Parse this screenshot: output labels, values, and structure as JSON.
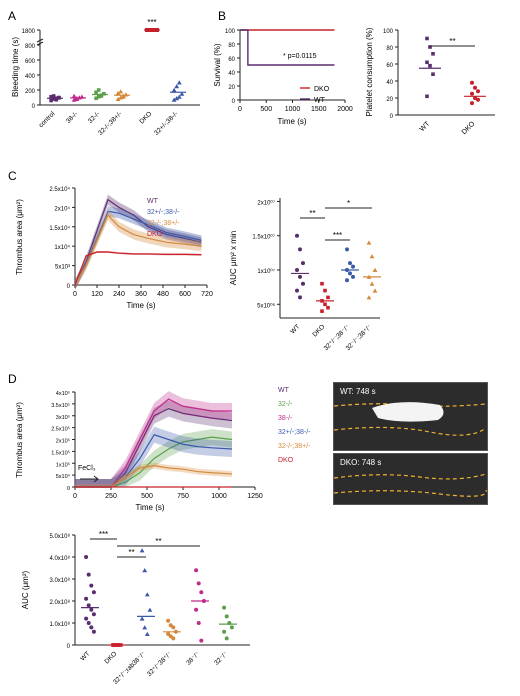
{
  "panels": {
    "A": "A",
    "B": "B",
    "C": "C",
    "D": "D"
  },
  "chart_data": [
    {
      "id": "A",
      "type": "scatter",
      "ylabel": "Bleeding time (s)",
      "yticks": [
        "0",
        "200",
        "400",
        "600",
        "800",
        "1800"
      ],
      "categories": [
        "control",
        "38-/-",
        "32-/-",
        "32-/-;38+/-",
        "DKO",
        "32+/-;38-/-"
      ],
      "colors": [
        "#5a2d6e",
        "#c02b8c",
        "#5aa04a",
        "#d48a3c",
        "#c8202b",
        "#3a5aa8"
      ],
      "values": [
        [
          60,
          80,
          90,
          100,
          110,
          120,
          70,
          95
        ],
        [
          70,
          90,
          100,
          110,
          120,
          80
        ],
        [
          90,
          110,
          130,
          150,
          170,
          200,
          120
        ],
        [
          80,
          100,
          120,
          140,
          160,
          180,
          110
        ],
        [
          1800,
          1800,
          1800,
          1800
        ],
        [
          70,
          90,
          110,
          150,
          200,
          250,
          300
        ]
      ],
      "means": [
        90,
        95,
        140,
        130,
        1800,
        170
      ],
      "annotation": "***"
    },
    {
      "id": "B1",
      "type": "line",
      "ylabel": "Survival (%)",
      "xlabel": "Time (s)",
      "yticks": [
        "0",
        "20",
        "40",
        "60",
        "80",
        "100"
      ],
      "xticks": [
        "0",
        "500",
        "1000",
        "1500",
        "2000"
      ],
      "series": [
        {
          "name": "DKO",
          "color": "#c8202b",
          "points": [
            [
              0,
              100
            ],
            [
              1800,
              100
            ]
          ]
        },
        {
          "name": "WT",
          "color": "#5a2d6e",
          "points": [
            [
              0,
              100
            ],
            [
              150,
              100
            ],
            [
              150,
              50
            ],
            [
              1800,
              50
            ]
          ]
        }
      ],
      "annotation": "* p=0.0115"
    },
    {
      "id": "B2",
      "type": "scatter",
      "ylabel": "Platelet consumption (%)",
      "yticks": [
        "0",
        "20",
        "40",
        "60",
        "80",
        "100"
      ],
      "categories": [
        "WT",
        "DKO"
      ],
      "colors": [
        "#5a2d6e",
        "#c8202b"
      ],
      "values": [
        [
          90,
          80,
          72,
          62,
          58,
          48,
          22
        ],
        [
          38,
          32,
          28,
          25,
          20,
          18,
          14
        ]
      ],
      "means": [
        55,
        22
      ],
      "annotation": "**"
    },
    {
      "id": "C1",
      "type": "line",
      "ylabel": "Thrombus area (μm²)",
      "xlabel": "Time (s)",
      "yticks": [
        "0",
        "5x10³",
        "1x10⁴",
        "1.5x10⁴",
        "2x10⁴",
        "2.5x10⁴"
      ],
      "xticks": [
        "0",
        "120",
        "240",
        "360",
        "480",
        "600",
        "720"
      ],
      "series": [
        {
          "name": "WT",
          "color": "#5a2d6e"
        },
        {
          "name": "32+/-;38-/-",
          "color": "#3a5aa8"
        },
        {
          "name": "32-/-;38+/-",
          "color": "#d48a3c"
        },
        {
          "name": "DKO",
          "color": "#c8202b"
        }
      ]
    },
    {
      "id": "C2",
      "type": "scatter",
      "ylabel": "AUC μm² x min",
      "yticks": [
        "5x10⁰⁶",
        "1x10⁰⁷",
        "1.5x10⁰⁷",
        "2x10⁰⁷"
      ],
      "categories": [
        "WT",
        "DKO",
        "32⁺/⁻;38⁻/⁻",
        "32⁻/⁻;38⁺/⁻"
      ],
      "colors": [
        "#5a2d6e",
        "#c8202b",
        "#3a5aa8",
        "#d48a3c"
      ],
      "values": [
        [
          1.5,
          1.3,
          1.1,
          1.0,
          0.9,
          0.8,
          0.7,
          0.6
        ],
        [
          0.8,
          0.7,
          0.6,
          0.55,
          0.5,
          0.45,
          0.4
        ],
        [
          1.3,
          1.1,
          1.05,
          1.0,
          0.95,
          0.9,
          0.85
        ],
        [
          1.4,
          1.2,
          1.0,
          0.9,
          0.8,
          0.7,
          0.6
        ]
      ],
      "means": [
        0.95,
        0.55,
        1.0,
        0.9
      ],
      "annotations": [
        "**",
        "*",
        "***"
      ]
    },
    {
      "id": "D1",
      "type": "line",
      "ylabel": "Thrombus area (μm²)",
      "xlabel": "Time (s)",
      "yticks": [
        "0",
        "5x10⁴",
        "1x10⁵",
        "1.5x10⁵",
        "2x10⁵",
        "2.5x10⁵",
        "3x10⁵",
        "3.5x10⁵",
        "4x10⁵"
      ],
      "xticks": [
        "0",
        "250",
        "500",
        "750",
        "1000",
        "1250"
      ],
      "series": [
        {
          "name": "WT",
          "color": "#5a2d6e"
        },
        {
          "name": "32-/-",
          "color": "#5aa04a"
        },
        {
          "name": "38-/-",
          "color": "#c02b8c"
        },
        {
          "name": "32+/-;38-/-",
          "color": "#3a5aa8"
        },
        {
          "name": "32-/-;38+/-",
          "color": "#d48a3c"
        },
        {
          "name": "DKO",
          "color": "#c8202b"
        }
      ],
      "annotation": "FeCl₃"
    },
    {
      "id": "D2",
      "type": "scatter",
      "ylabel": "AUC (μm²)",
      "yticks": [
        "0",
        "1.0x10⁸",
        "2.0x10⁸",
        "3.0x10⁸",
        "4.0x10⁸",
        "5.0x10⁸"
      ],
      "categories": [
        "WT",
        "DKO",
        "32⁺/⁻;rab38⁻/⁻",
        "32⁺/⁻38⁺/⁻",
        "38⁻/⁻",
        "32⁻/⁻"
      ],
      "colors": [
        "#5a2d6e",
        "#c8202b",
        "#3a5aa8",
        "#d48a3c",
        "#c02b8c",
        "#5aa04a"
      ],
      "values": [
        [
          4.0,
          3.2,
          2.7,
          2.4,
          2.1,
          1.8,
          1.6,
          1.4,
          1.2,
          1.0,
          0.8,
          0.6
        ],
        [
          0,
          0,
          0,
          0,
          0,
          0,
          0
        ],
        [
          4.3,
          3.4,
          2.3,
          1.6,
          1.2,
          0.8,
          0.5
        ],
        [
          1.1,
          0.9,
          0.8,
          0.6,
          0.5,
          0.4,
          0.3
        ],
        [
          3.4,
          2.8,
          2.4,
          2.0,
          1.6,
          1.0,
          0.2
        ],
        [
          1.7,
          1.3,
          1.0,
          0.8,
          0.6,
          0.3
        ]
      ],
      "means": [
        1.7,
        0,
        1.3,
        0.6,
        2.0,
        0.95
      ],
      "annotations": [
        "***",
        "**",
        "**"
      ]
    }
  ],
  "photos": [
    {
      "label": "WT: 748 s"
    },
    {
      "label": "DKO: 748 s"
    }
  ]
}
